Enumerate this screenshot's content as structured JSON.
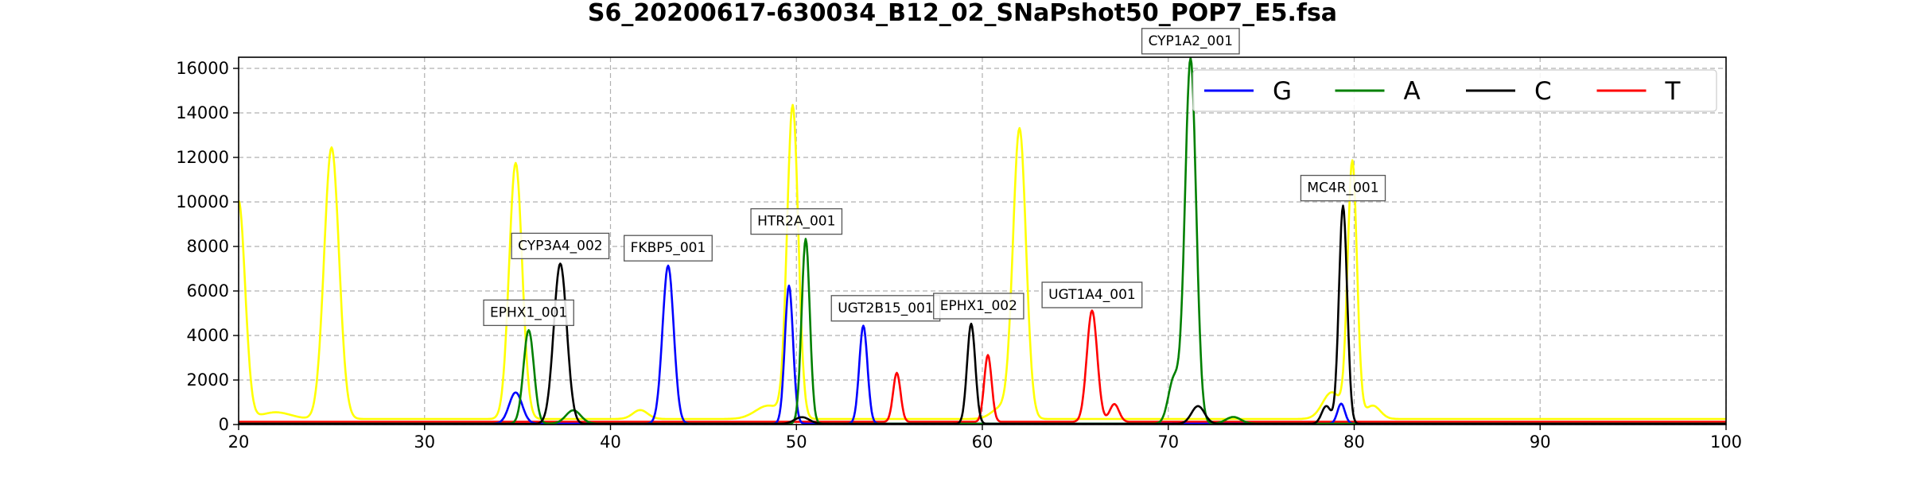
{
  "chart_data": {
    "type": "line",
    "title": "S6_20200617-630034_B12_02_SNaPshot50_POP7_E5.fsa",
    "xlabel": "",
    "ylabel": "",
    "xlim": [
      20,
      100
    ],
    "ylim": [
      0,
      16500
    ],
    "xticks": [
      20,
      30,
      40,
      50,
      60,
      70,
      80,
      90,
      100
    ],
    "yticks": [
      0,
      2000,
      4000,
      6000,
      8000,
      10000,
      12000,
      14000,
      16000
    ],
    "grid": true,
    "legend_position": "top-right",
    "series": [
      {
        "name": "G",
        "color": "#0000ff",
        "baseline": 40,
        "peaks": [
          [
            34.9,
            1400,
            0.35
          ],
          [
            43.1,
            7100,
            0.3
          ],
          [
            49.6,
            6200,
            0.22
          ],
          [
            53.6,
            4400,
            0.22
          ],
          [
            79.3,
            900,
            0.2
          ]
        ]
      },
      {
        "name": "A",
        "color": "#008000",
        "baseline": 40,
        "peaks": [
          [
            35.6,
            4200,
            0.28
          ],
          [
            38.0,
            600,
            0.4
          ],
          [
            50.5,
            8300,
            0.22
          ],
          [
            70.3,
            2000,
            0.3
          ],
          [
            71.2,
            16400,
            0.3
          ],
          [
            73.5,
            300,
            0.4
          ]
        ]
      },
      {
        "name": "C",
        "color": "#000000",
        "baseline": 30,
        "peaks": [
          [
            37.3,
            7200,
            0.35
          ],
          [
            50.3,
            300,
            0.4
          ],
          [
            59.4,
            4500,
            0.22
          ],
          [
            71.6,
            800,
            0.35
          ],
          [
            78.5,
            800,
            0.25
          ],
          [
            79.4,
            9800,
            0.22
          ]
        ]
      },
      {
        "name": "T",
        "color": "#ff0000",
        "baseline": 120,
        "peaks": [
          [
            55.4,
            2200,
            0.2
          ],
          [
            60.3,
            3000,
            0.2
          ],
          [
            65.9,
            5000,
            0.28
          ],
          [
            67.1,
            800,
            0.25
          ]
        ]
      },
      {
        "name": "",
        "color": "#ffff00",
        "baseline": 250,
        "peaks": [
          [
            20.0,
            9800,
            0.35
          ],
          [
            22.0,
            300,
            0.8
          ],
          [
            25.0,
            12200,
            0.4
          ],
          [
            34.9,
            11500,
            0.35
          ],
          [
            41.6,
            400,
            0.4
          ],
          [
            49.8,
            14000,
            0.3
          ],
          [
            48.5,
            600,
            0.7
          ],
          [
            62.0,
            13000,
            0.35
          ],
          [
            61.0,
            500,
            0.5
          ],
          [
            78.8,
            1200,
            0.5
          ],
          [
            79.9,
            11500,
            0.25
          ],
          [
            81.0,
            600,
            0.4
          ]
        ]
      }
    ],
    "annotations": [
      {
        "text": "EPHX1_001",
        "x": 35.6,
        "y": 4200
      },
      {
        "text": "CYP3A4_002",
        "x": 37.3,
        "y": 7200
      },
      {
        "text": "FKBP5_001",
        "x": 43.1,
        "y": 7100
      },
      {
        "text": "HTR2A_001",
        "x": 50.0,
        "y": 8300
      },
      {
        "text": "UGT2B15_001",
        "x": 54.8,
        "y": 4400
      },
      {
        "text": "EPHX1_002",
        "x": 59.8,
        "y": 4500
      },
      {
        "text": "UGT1A4_001",
        "x": 65.9,
        "y": 5000
      },
      {
        "text": "CYP1A2_001",
        "x": 71.2,
        "y": 16400
      },
      {
        "text": "MC4R_001",
        "x": 79.4,
        "y": 9800
      }
    ]
  }
}
